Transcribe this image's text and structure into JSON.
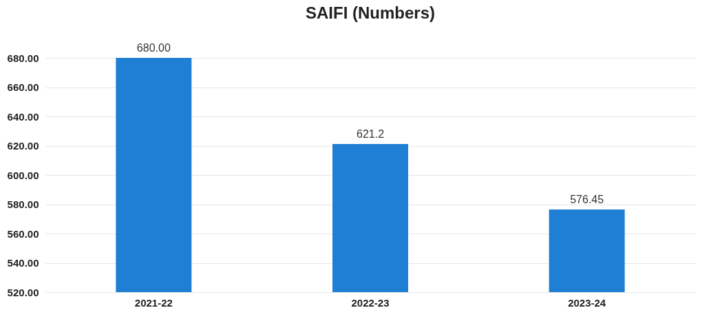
{
  "chart_data": {
    "type": "bar",
    "title": "SAIFI (Numbers)",
    "categories": [
      "2021-22",
      "2022-23",
      "2023-24"
    ],
    "values": [
      680.0,
      621.2,
      576.45
    ],
    "value_labels": [
      "680.00",
      "621.2",
      "576.45"
    ],
    "color": "#1f7fd4",
    "ylim": [
      520,
      680
    ],
    "yticks": [
      {
        "value": 520,
        "label": "520.00"
      },
      {
        "value": 540,
        "label": "540.00"
      },
      {
        "value": 560,
        "label": "560.00"
      },
      {
        "value": 580,
        "label": "580.00"
      },
      {
        "value": 600,
        "label": "600.00"
      },
      {
        "value": 620,
        "label": "620.00"
      },
      {
        "value": 640,
        "label": "640.00"
      },
      {
        "value": 660,
        "label": "660.00"
      },
      {
        "value": 680,
        "label": "680.00"
      }
    ],
    "grid": "y"
  }
}
